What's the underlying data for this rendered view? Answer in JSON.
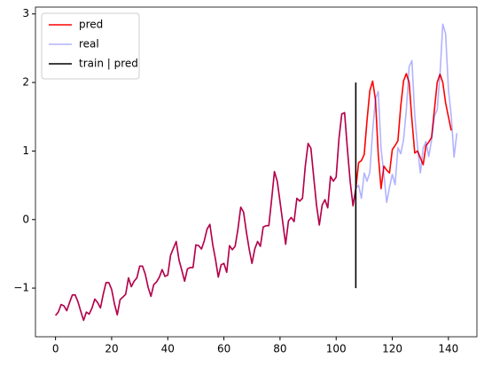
{
  "chart_data": {
    "type": "line",
    "xlim": [
      -7.15,
      150.15
    ],
    "ylim": [
      -1.71,
      3.1
    ],
    "xticks": [
      0,
      20,
      40,
      60,
      80,
      100,
      120,
      140
    ],
    "yticks": [
      -1,
      0,
      1,
      2,
      3
    ],
    "legend": "upper left",
    "series": [
      {
        "name": "pred",
        "color": "red",
        "alpha": 1,
        "x": [
          0,
          1,
          2,
          3,
          4,
          5,
          6,
          7,
          8,
          9,
          10,
          11,
          12,
          13,
          14,
          15,
          16,
          17,
          18,
          19,
          20,
          21,
          22,
          23,
          24,
          25,
          26,
          27,
          28,
          29,
          30,
          31,
          32,
          33,
          34,
          35,
          36,
          37,
          38,
          39,
          40,
          41,
          42,
          43,
          44,
          45,
          46,
          47,
          48,
          49,
          50,
          51,
          52,
          53,
          54,
          55,
          56,
          57,
          58,
          59,
          60,
          61,
          62,
          63,
          64,
          65,
          66,
          67,
          68,
          69,
          70,
          71,
          72,
          73,
          74,
          75,
          76,
          77,
          78,
          79,
          80,
          81,
          82,
          83,
          84,
          85,
          86,
          87,
          88,
          89,
          90,
          91,
          92,
          93,
          94,
          95,
          96,
          97,
          98,
          99,
          100,
          101,
          102,
          103,
          104,
          105,
          106,
          107,
          108,
          109,
          110,
          111,
          112,
          113,
          114,
          115,
          116,
          117,
          118,
          119,
          120,
          121,
          122,
          123,
          124,
          125,
          126,
          127,
          128,
          129,
          130,
          131,
          132,
          133,
          134,
          135,
          136,
          137,
          138,
          139,
          140,
          141
        ],
        "values": [
          -1.4,
          -1.35,
          -1.24,
          -1.26,
          -1.33,
          -1.21,
          -1.1,
          -1.1,
          -1.2,
          -1.34,
          -1.47,
          -1.35,
          -1.38,
          -1.29,
          -1.16,
          -1.21,
          -1.29,
          -1.09,
          -0.92,
          -0.92,
          -1.02,
          -1.23,
          -1.39,
          -1.17,
          -1.13,
          -1.09,
          -0.85,
          -0.98,
          -0.9,
          -0.85,
          -0.68,
          -0.68,
          -0.8,
          -0.99,
          -1.12,
          -0.95,
          -0.91,
          -0.84,
          -0.73,
          -0.83,
          -0.81,
          -0.52,
          -0.42,
          -0.32,
          -0.59,
          -0.74,
          -0.9,
          -0.72,
          -0.7,
          -0.7,
          -0.37,
          -0.38,
          -0.43,
          -0.31,
          -0.14,
          -0.07,
          -0.36,
          -0.58,
          -0.84,
          -0.66,
          -0.64,
          -0.77,
          -0.38,
          -0.44,
          -0.39,
          -0.14,
          0.18,
          0.11,
          -0.18,
          -0.43,
          -0.64,
          -0.43,
          -0.32,
          -0.39,
          -0.11,
          -0.09,
          -0.09,
          0.29,
          0.7,
          0.56,
          0.26,
          -0.05,
          -0.36,
          -0.02,
          0.03,
          -0.03,
          0.31,
          0.27,
          0.31,
          0.78,
          1.11,
          1.04,
          0.62,
          0.21,
          -0.08,
          0.21,
          0.29,
          0.17,
          0.63,
          0.56,
          0.62,
          1.18,
          1.54,
          1.56,
          1.03,
          0.55,
          0.2,
          0.45,
          0.83,
          0.86,
          0.95,
          1.45,
          1.88,
          2.02,
          1.75,
          0.95,
          0.45,
          0.78,
          0.72,
          0.68,
          1.02,
          1.08,
          1.15,
          1.65,
          2.02,
          2.13,
          2.0,
          1.45,
          0.97,
          1.0,
          0.9,
          0.8,
          1.08,
          1.13,
          1.2,
          1.6,
          2.0,
          2.12,
          2.0,
          1.7,
          1.5,
          1.3
        ]
      },
      {
        "name": "real",
        "color": "blue",
        "alpha": 0.3,
        "x": [
          0,
          1,
          2,
          3,
          4,
          5,
          6,
          7,
          8,
          9,
          10,
          11,
          12,
          13,
          14,
          15,
          16,
          17,
          18,
          19,
          20,
          21,
          22,
          23,
          24,
          25,
          26,
          27,
          28,
          29,
          30,
          31,
          32,
          33,
          34,
          35,
          36,
          37,
          38,
          39,
          40,
          41,
          42,
          43,
          44,
          45,
          46,
          47,
          48,
          49,
          50,
          51,
          52,
          53,
          54,
          55,
          56,
          57,
          58,
          59,
          60,
          61,
          62,
          63,
          64,
          65,
          66,
          67,
          68,
          69,
          70,
          71,
          72,
          73,
          74,
          75,
          76,
          77,
          78,
          79,
          80,
          81,
          82,
          83,
          84,
          85,
          86,
          87,
          88,
          89,
          90,
          91,
          92,
          93,
          94,
          95,
          96,
          97,
          98,
          99,
          100,
          101,
          102,
          103,
          104,
          105,
          106,
          107,
          108,
          109,
          110,
          111,
          112,
          113,
          114,
          115,
          116,
          117,
          118,
          119,
          120,
          121,
          122,
          123,
          124,
          125,
          126,
          127,
          128,
          129,
          130,
          131,
          132,
          133,
          134,
          135,
          136,
          137,
          138,
          139,
          140,
          141,
          142,
          143
        ],
        "values": [
          -1.4,
          -1.35,
          -1.24,
          -1.26,
          -1.33,
          -1.21,
          -1.1,
          -1.1,
          -1.2,
          -1.34,
          -1.47,
          -1.35,
          -1.38,
          -1.29,
          -1.16,
          -1.21,
          -1.29,
          -1.09,
          -0.92,
          -0.92,
          -1.02,
          -1.23,
          -1.39,
          -1.17,
          -1.13,
          -1.09,
          -0.85,
          -0.98,
          -0.9,
          -0.85,
          -0.68,
          -0.68,
          -0.8,
          -0.99,
          -1.12,
          -0.95,
          -0.91,
          -0.84,
          -0.73,
          -0.83,
          -0.81,
          -0.52,
          -0.42,
          -0.32,
          -0.59,
          -0.74,
          -0.9,
          -0.72,
          -0.7,
          -0.7,
          -0.37,
          -0.38,
          -0.43,
          -0.31,
          -0.14,
          -0.07,
          -0.36,
          -0.58,
          -0.84,
          -0.66,
          -0.64,
          -0.77,
          -0.38,
          -0.44,
          -0.39,
          -0.14,
          0.18,
          0.11,
          -0.18,
          -0.43,
          -0.64,
          -0.43,
          -0.32,
          -0.39,
          -0.11,
          -0.09,
          -0.09,
          0.29,
          0.7,
          0.56,
          0.26,
          -0.05,
          -0.36,
          -0.02,
          0.03,
          -0.03,
          0.31,
          0.27,
          0.31,
          0.78,
          1.11,
          1.04,
          0.62,
          0.21,
          -0.08,
          0.21,
          0.29,
          0.17,
          0.63,
          0.56,
          0.62,
          1.18,
          1.54,
          1.56,
          1.03,
          0.56,
          0.21,
          0.46,
          0.5,
          0.31,
          0.68,
          0.56,
          0.69,
          1.29,
          1.76,
          1.87,
          1.03,
          0.66,
          0.25,
          0.47,
          0.66,
          0.51,
          1.05,
          0.96,
          1.16,
          1.6,
          2.23,
          2.32,
          1.52,
          1.06,
          0.68,
          1.04,
          1.14,
          0.92,
          1.16,
          1.51,
          1.6,
          2.12,
          2.85,
          2.71,
          1.9,
          1.51,
          0.91,
          1.26
        ]
      }
    ],
    "vlines": [
      {
        "name": "train | pred",
        "color": "black",
        "x": 107,
        "ymin": -1,
        "ymax": 2
      }
    ]
  }
}
